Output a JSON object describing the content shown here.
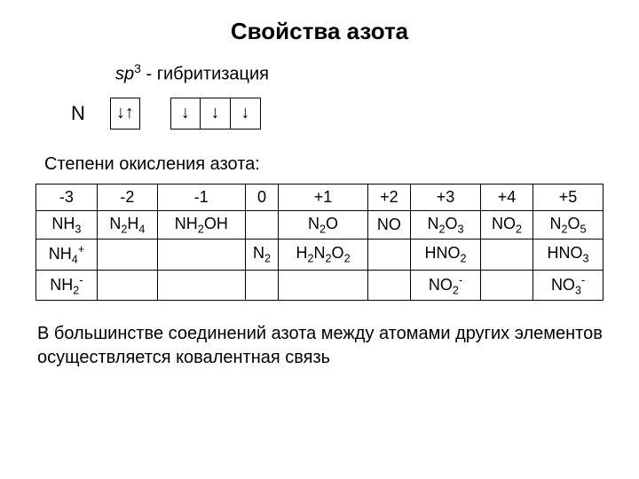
{
  "title": "Свойства азота",
  "hybrid_prefix": "sp",
  "hybrid_sup": "3",
  "hybrid_suffix": " - гибритизация",
  "orbital": {
    "label": "N",
    "pair": "↓↑",
    "single": "↓"
  },
  "oxid_label": "Степени окисления азота:",
  "states": {
    "s0": "-3",
    "s1": "-2",
    "s2": "-1",
    "s3": "0",
    "s4": "+1",
    "s5": "+2",
    "s6": "+3",
    "s7": "+4",
    "s8": "+5"
  },
  "row1": {
    "c0_a": "NH",
    "c0_b": "3",
    "c1_a": "N",
    "c1_b": "2",
    "c1_c": "H",
    "c1_d": "4",
    "c2_a": "NH",
    "c2_b": "2",
    "c2_c": "OH",
    "c4_a": "N",
    "c4_b": "2",
    "c4_c": "O",
    "c5_a": "NO",
    "c6_a": "N",
    "c6_b": "2",
    "c6_c": "O",
    "c6_d": "3",
    "c7_a": "NO",
    "c7_b": "2",
    "c8_a": "N",
    "c8_b": "2",
    "c8_c": "O",
    "c8_d": "5"
  },
  "row2": {
    "c0_a": "NH",
    "c0_b": "4",
    "c0_c": "+",
    "c3_a": "N",
    "c3_b": "2",
    "c4_a": "H",
    "c4_b": "2",
    "c4_c": "N",
    "c4_d": "2",
    "c4_e": "O",
    "c4_f": "2",
    "c6_a": "HNO",
    "c6_b": "2",
    "c8_a": "HNO",
    "c8_b": "3"
  },
  "row3": {
    "c0_a": "NH",
    "c0_b": "2",
    "c0_c": "-",
    "c6_a": "NO",
    "c6_b": "2",
    "c6_c": "-",
    "c8_a": "NO",
    "c8_b": "3",
    "c8_c": "-"
  },
  "footer": "В большинстве соединений азота между атомами других элементов осуществляется ковалентная связь"
}
